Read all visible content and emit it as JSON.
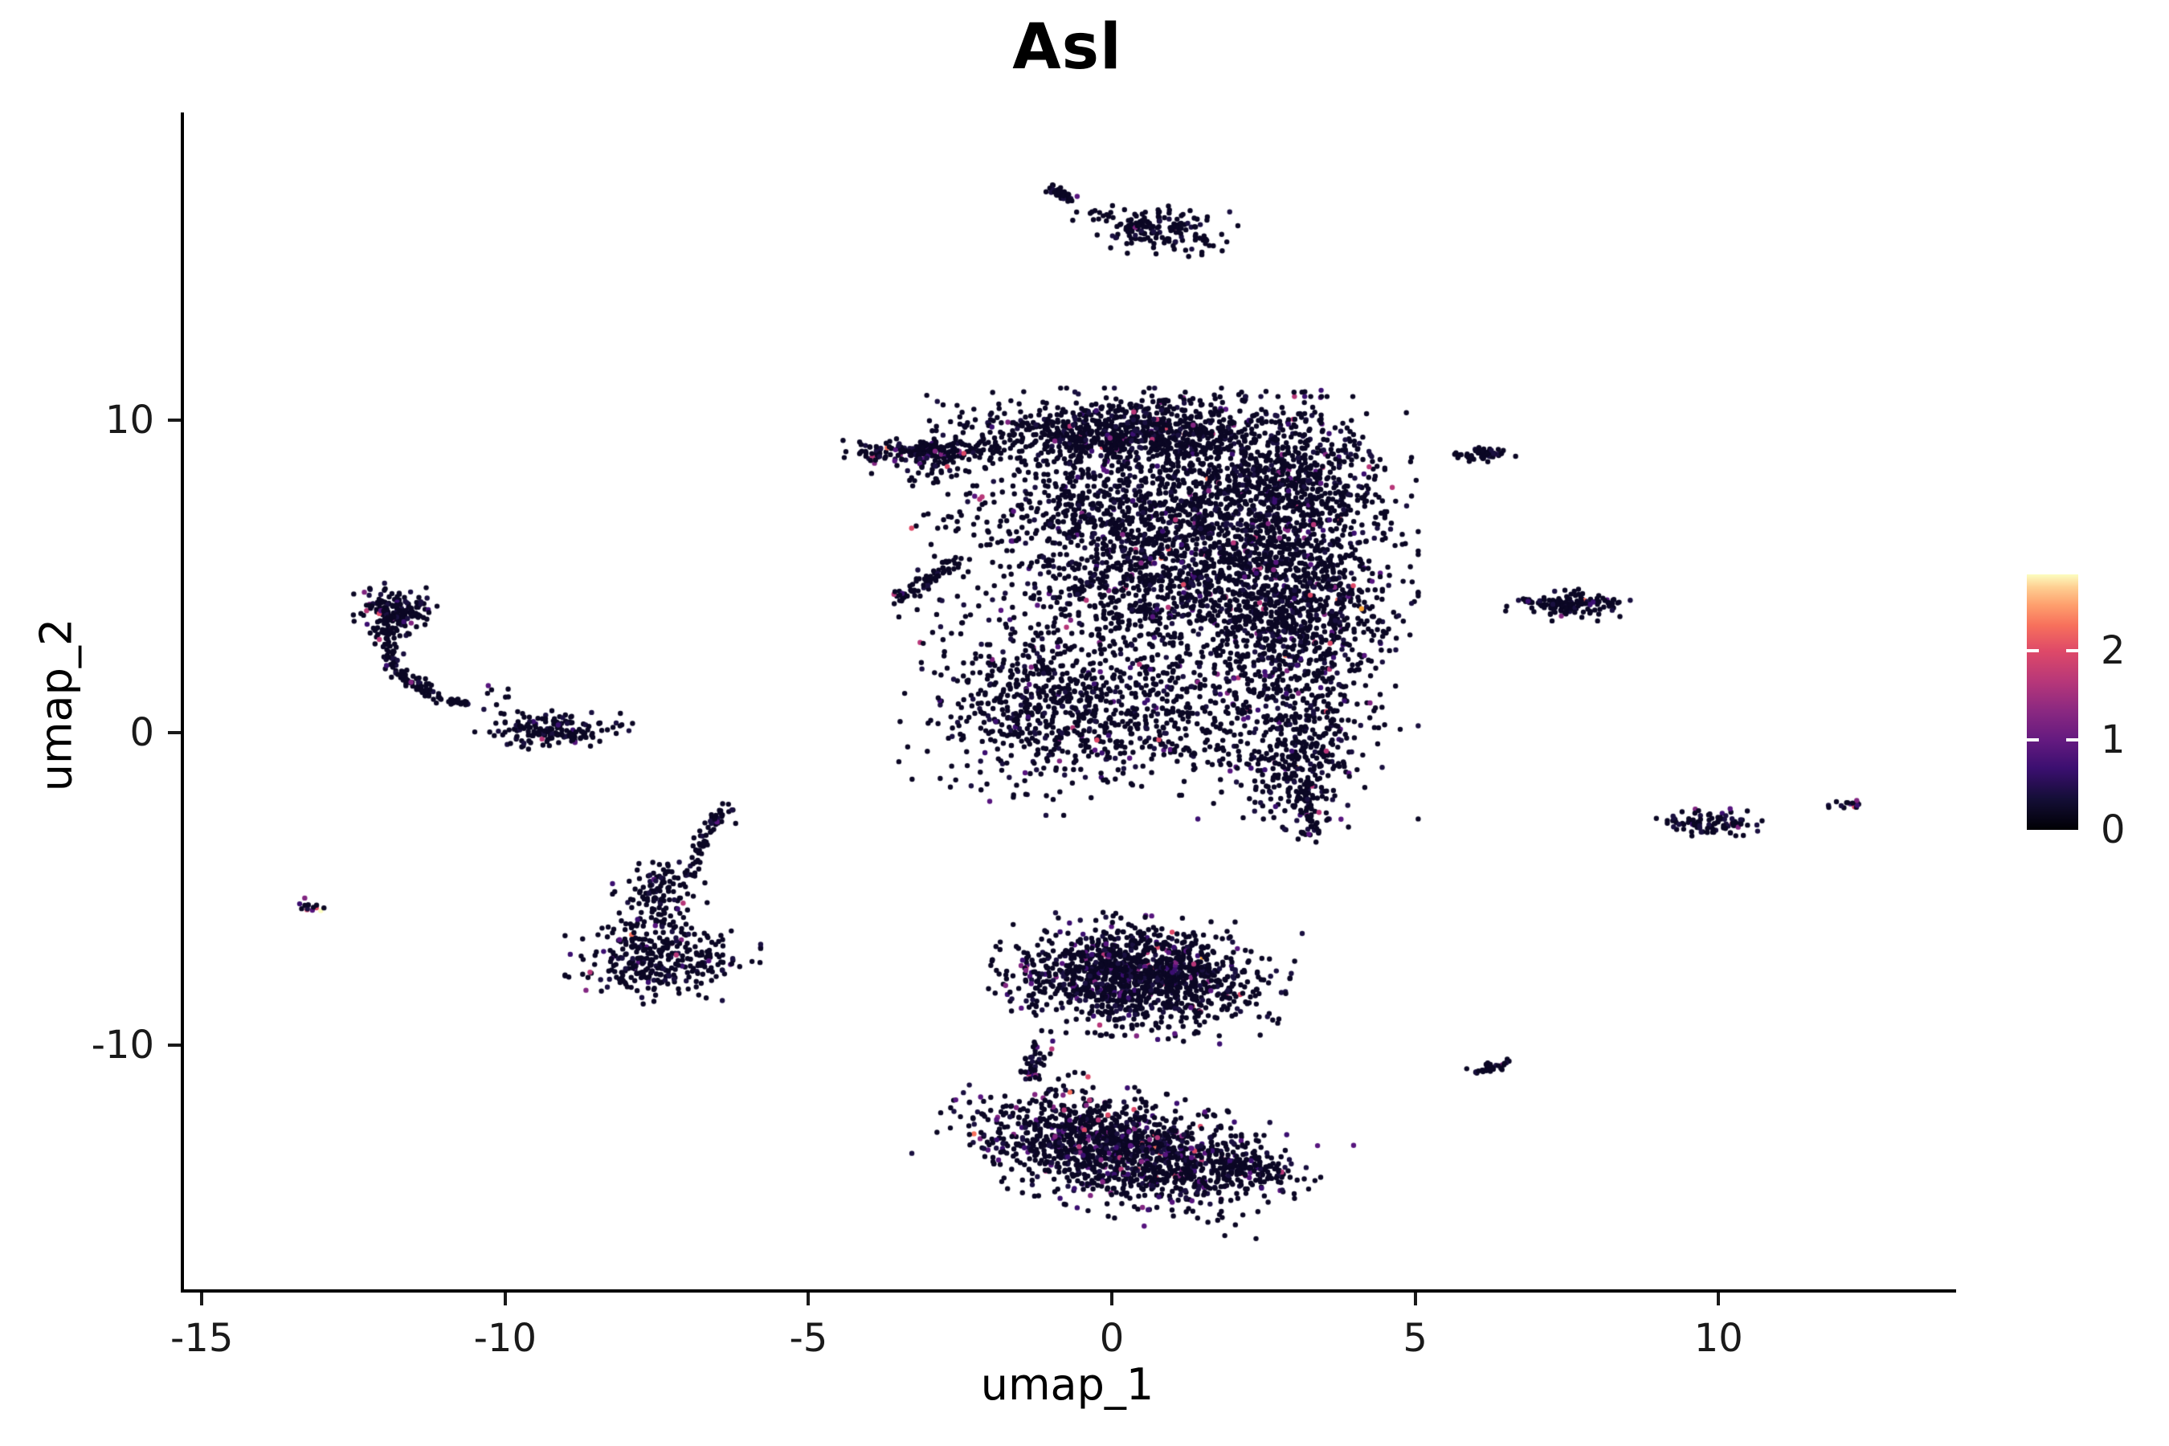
{
  "chart_data": {
    "type": "scatter",
    "title": "Asl",
    "xlabel": "umap_1",
    "ylabel": "umap_2",
    "x_domain": [
      -15.32,
      13.85
    ],
    "y_domain": [
      -17.81,
      19.85
    ],
    "x_ticks": [
      -15,
      -10,
      -5,
      0,
      5,
      10
    ],
    "y_ticks": [
      10,
      0,
      -10
    ],
    "grid": "off",
    "legend_position": "right",
    "point_radius_px": 3.2,
    "base_colors": [
      "#0b0724",
      "#1a1040"
    ],
    "accent_palette": [
      [
        "#3b0f70",
        0.35
      ],
      [
        "#57157e",
        0.25
      ],
      [
        "#812581",
        0.2
      ],
      [
        "#b73779",
        0.12
      ],
      [
        "#de4968",
        0.06
      ],
      [
        "#f7705c",
        0.015
      ],
      [
        "#fca636",
        0.004
      ],
      [
        "#fcfdbf",
        0.001
      ]
    ],
    "colorbar": {
      "domain": [
        0,
        2.85
      ],
      "ticks": [
        0,
        1,
        2
      ],
      "stops": [
        [
          0.0,
          "#000004"
        ],
        [
          0.12,
          "#140e36"
        ],
        [
          0.24,
          "#3b0f70"
        ],
        [
          0.35,
          "#641a80"
        ],
        [
          0.47,
          "#8c2981"
        ],
        [
          0.58,
          "#b73779"
        ],
        [
          0.7,
          "#de4968"
        ],
        [
          0.8,
          "#f7705c"
        ],
        [
          0.88,
          "#fe9f6d"
        ],
        [
          0.95,
          "#fecf92"
        ],
        [
          1.0,
          "#fcfdbf"
        ]
      ]
    },
    "clusters": [
      {
        "kind": "line",
        "x1": -1.05,
        "y1": 17.45,
        "x2": -0.62,
        "y2": 17.05,
        "jitter": 0.06,
        "n": 45,
        "accent": 0.02
      },
      {
        "kind": "line",
        "x1": -0.5,
        "y1": 16.8,
        "x2": 0.05,
        "y2": 16.45,
        "jitter": 0.05,
        "n": 6,
        "accent": 0
      },
      {
        "kind": "gauss",
        "cx": 0.75,
        "cy": 16.1,
        "sx": 0.55,
        "sy": 0.33,
        "rot": -15,
        "n": 165,
        "accent": 0.04
      },
      {
        "kind": "gauss",
        "cx": -11.85,
        "cy": 3.85,
        "sx": 0.28,
        "sy": 0.36,
        "rot": 0,
        "n": 170,
        "accent": 0.07
      },
      {
        "kind": "line",
        "x1": -12.05,
        "y1": 3.3,
        "x2": -11.75,
        "y2": 1.9,
        "jitter": 0.09,
        "n": 60,
        "accent": 0.04
      },
      {
        "kind": "line",
        "x1": -11.75,
        "y1": 1.9,
        "x2": -11.05,
        "y2": 1.05,
        "jitter": 0.09,
        "n": 50,
        "accent": 0.04
      },
      {
        "kind": "line",
        "x1": -11.05,
        "y1": 1.05,
        "x2": -10.6,
        "y2": 0.95,
        "jitter": 0.05,
        "n": 25,
        "accent": 0.03
      },
      {
        "kind": "gauss",
        "cx": -10.0,
        "cy": 1.0,
        "sx": 0.28,
        "sy": 0.33,
        "rot": 0,
        "n": 8,
        "accent": 0.1
      },
      {
        "kind": "gauss",
        "cx": -9.2,
        "cy": 0.1,
        "sx": 0.5,
        "sy": 0.26,
        "rot": 0,
        "n": 165,
        "accent": 0.05
      },
      {
        "kind": "gauss",
        "cx": -13.2,
        "cy": -5.6,
        "sx": 0.16,
        "sy": 0.12,
        "rot": 0,
        "n": 14,
        "accent": 0.1,
        "force": [
          "#fcfdbf",
          "#de4968",
          "#812581",
          "#57157e"
        ]
      },
      {
        "kind": "line",
        "x1": -6.35,
        "y1": -2.35,
        "x2": -6.75,
        "y2": -3.3,
        "jitter": 0.07,
        "n": 30,
        "accent": 0.02
      },
      {
        "kind": "line",
        "x1": -6.75,
        "y1": -3.3,
        "x2": -6.95,
        "y2": -4.6,
        "jitter": 0.07,
        "n": 35,
        "accent": 0.02
      },
      {
        "kind": "gauss",
        "cx": -7.45,
        "cy": -5.2,
        "sx": 0.3,
        "sy": 0.5,
        "rot": 0,
        "n": 120,
        "accent": 0.04
      },
      {
        "kind": "gauss",
        "cx": -7.4,
        "cy": -7.25,
        "sx": 0.62,
        "sy": 0.55,
        "rot": 0,
        "n": 330,
        "accent": 0.05
      },
      {
        "kind": "gauss",
        "cx": -3.0,
        "cy": 9.0,
        "sx": 0.55,
        "sy": 0.18,
        "rot": 0,
        "n": 220,
        "accent": 0.08
      },
      {
        "kind": "gauss",
        "cx": -3.0,
        "cy": 8.3,
        "sx": 0.4,
        "sy": 0.28,
        "rot": 0,
        "n": 25,
        "accent": 0.05
      },
      {
        "kind": "line",
        "x1": -3.55,
        "y1": 4.25,
        "x2": -2.5,
        "y2": 5.5,
        "jitter": 0.12,
        "n": 70,
        "accent": 0.06
      },
      {
        "kind": "gauss",
        "cx": 0.2,
        "cy": 9.6,
        "sx": 1.25,
        "sy": 0.55,
        "rot": 0,
        "n": 950,
        "accent": 0.05
      },
      {
        "kind": "gauss",
        "cx": 0.6,
        "cy": 7.2,
        "sx": 1.5,
        "sy": 0.9,
        "rot": 0,
        "n": 750,
        "accent": 0.05
      },
      {
        "kind": "gauss",
        "cx": -0.3,
        "cy": 4.8,
        "sx": 1.1,
        "sy": 1.3,
        "rot": 0,
        "n": 380,
        "accent": 0.06
      },
      {
        "kind": "gauss",
        "cx": 1.6,
        "cy": 4.8,
        "sx": 1.1,
        "sy": 1.4,
        "rot": 0,
        "n": 800,
        "accent": 0.06
      },
      {
        "kind": "gauss",
        "cx": 3.1,
        "cy": 4.0,
        "sx": 0.75,
        "sy": 2.6,
        "rot": 0,
        "n": 1250,
        "accent": 0.07
      },
      {
        "kind": "gauss",
        "cx": 2.6,
        "cy": 8.3,
        "sx": 0.9,
        "sy": 1.0,
        "rot": 0,
        "n": 550,
        "accent": 0.06
      },
      {
        "kind": "gauss",
        "cx": -1.3,
        "cy": 1.0,
        "sx": 0.85,
        "sy": 1.4,
        "rot": 0,
        "n": 520,
        "accent": 0.06
      },
      {
        "kind": "gauss",
        "cx": 0.7,
        "cy": 0.6,
        "sx": 1.1,
        "sy": 1.1,
        "rot": 0,
        "n": 420,
        "accent": 0.06
      },
      {
        "kind": "gauss",
        "cx": 3.0,
        "cy": -0.8,
        "sx": 0.45,
        "sy": 1.0,
        "rot": 0,
        "n": 260,
        "accent": 0.07
      },
      {
        "kind": "line",
        "x1": 3.15,
        "y1": -1.6,
        "x2": 3.3,
        "y2": -3.4,
        "jitter": 0.08,
        "n": 45,
        "accent": 0.03
      },
      {
        "kind": "gauss",
        "cx": 6.1,
        "cy": 8.9,
        "sx": 0.22,
        "sy": 0.1,
        "rot": 0,
        "n": 55,
        "accent": 0.02,
        "force": [
          "#57157e"
        ]
      },
      {
        "kind": "gauss",
        "cx": 7.5,
        "cy": 4.1,
        "sx": 0.42,
        "sy": 0.2,
        "rot": 0,
        "n": 130,
        "accent": 0.03
      },
      {
        "kind": "line",
        "x1": 6.75,
        "y1": 4.25,
        "x2": 7.0,
        "y2": 4.18,
        "jitter": 0.05,
        "n": 6,
        "accent": 0.15
      },
      {
        "kind": "gauss",
        "cx": 9.85,
        "cy": -2.9,
        "sx": 0.45,
        "sy": 0.18,
        "rot": 0,
        "n": 95,
        "accent": 0.09
      },
      {
        "kind": "gauss",
        "cx": 12.25,
        "cy": -2.28,
        "sx": 0.12,
        "sy": 0.07,
        "rot": 0,
        "n": 14,
        "accent": 0.1,
        "force": [
          "#de4968",
          "#57157e"
        ]
      },
      {
        "kind": "gauss",
        "cx": 11.8,
        "cy": -2.35,
        "sx": 0.05,
        "sy": 0.03,
        "rot": 0,
        "n": 2,
        "accent": 0
      },
      {
        "kind": "line",
        "x1": 6.0,
        "y1": -10.9,
        "x2": 6.45,
        "y2": -10.5,
        "jitter": 0.08,
        "n": 28,
        "accent": 0.04
      },
      {
        "kind": "gauss",
        "cx": 0.45,
        "cy": -7.8,
        "sx": 0.95,
        "sy": 0.75,
        "rot": -8,
        "n": 1350,
        "accent": 0.1
      },
      {
        "kind": "line",
        "x1": -1.15,
        "y1": -9.9,
        "x2": -1.4,
        "y2": -11.1,
        "jitter": 0.1,
        "n": 40,
        "accent": 0.15
      },
      {
        "kind": "gauss",
        "cx": 0.2,
        "cy": -13.4,
        "sx": 1.25,
        "sy": 0.75,
        "rot": -28,
        "n": 1400,
        "accent": 0.12
      },
      {
        "kind": "gauss",
        "cx": 2.2,
        "cy": -13.9,
        "sx": 0.4,
        "sy": 0.33,
        "rot": -20,
        "n": 120,
        "accent": 0.1
      }
    ],
    "singles": [
      [
        -10.35,
        0.75
      ],
      [
        -9.95,
        1.4
      ],
      [
        -9.6,
        0.5
      ],
      [
        5.85,
        -10.75
      ],
      [
        0.55,
        -5.9
      ],
      [
        -6.2,
        -2.9
      ],
      [
        4.0,
        9.2
      ],
      [
        -4.05,
        8.95
      ]
    ]
  }
}
